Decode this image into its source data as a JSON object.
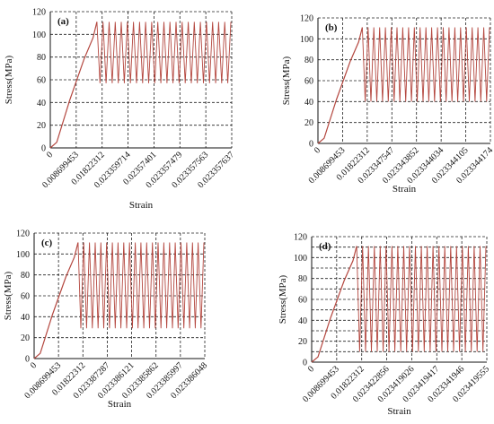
{
  "chart_data": [
    {
      "type": "line",
      "panel_label": "(a)",
      "xlabel": "Strain",
      "ylabel": "Stress(MPa)",
      "ylim": [
        0,
        120
      ],
      "yticks": [
        "0",
        "20",
        "40",
        "60",
        "80",
        "100",
        "120"
      ],
      "xticks": [
        "0",
        "0.008699453",
        "0.01822312",
        "0.023359714",
        "0.02357401",
        "0.023357479",
        "0.023357563",
        "0.023357637"
      ],
      "grid": true,
      "monotonic_loading": {
        "x_tick_position": [
          0,
          0.25,
          0.75,
          1.3,
          1.65,
          1.8
        ],
        "stress": [
          0,
          5,
          42,
          78,
          97,
          111
        ]
      },
      "cyclic_loading": {
        "max_stress": 111,
        "min_stress": 57,
        "cycles": 22
      }
    },
    {
      "type": "line",
      "panel_label": "(b)",
      "xlabel": "Strain",
      "ylabel": "Stress(MPa)",
      "ylim": [
        0,
        120
      ],
      "yticks": [
        "0",
        "20",
        "40",
        "60",
        "80",
        "100",
        "120"
      ],
      "xticks": [
        "0",
        "0.008699453",
        "0.01822312",
        "0.023347547",
        "0.023343852",
        "0.023344034",
        "0.023344105",
        "0.023344174"
      ],
      "grid": true,
      "monotonic_loading": {
        "x_tick_position": [
          0,
          0.25,
          0.75,
          1.3,
          1.65,
          1.8
        ],
        "stress": [
          0,
          5,
          42,
          78,
          97,
          111
        ]
      },
      "cyclic_loading": {
        "max_stress": 111,
        "min_stress": 40,
        "cycles": 22
      }
    },
    {
      "type": "line",
      "panel_label": "(c)",
      "xlabel": "Strain",
      "ylabel": "Stress(MPa)",
      "ylim": [
        0,
        120
      ],
      "yticks": [
        "0",
        "20",
        "40",
        "60",
        "80",
        "100",
        "120"
      ],
      "xticks": [
        "0",
        "0.008699453",
        "0.01822312",
        "0.023387287",
        "0.023386121",
        "0.023385862",
        "0.023385997",
        "0.023386048"
      ],
      "grid": true,
      "monotonic_loading": {
        "x_tick_position": [
          0,
          0.25,
          0.75,
          1.3,
          1.65,
          1.8
        ],
        "stress": [
          0,
          5,
          42,
          78,
          97,
          111
        ]
      },
      "cyclic_loading": {
        "max_stress": 111,
        "min_stress": 29,
        "cycles": 22
      }
    },
    {
      "type": "line",
      "panel_label": "(d)",
      "xlabel": "Strain",
      "ylabel": "Stress(MPa)",
      "ylim": [
        0,
        120
      ],
      "yticks": [
        "0",
        "10",
        "20",
        "30",
        "40",
        "50",
        "60",
        "70",
        "80",
        "90",
        "100",
        "110",
        "120"
      ],
      "ytick_labels_shown": [
        "0",
        "20",
        "40",
        "60",
        "80",
        "100",
        "120"
      ],
      "xticks": [
        "0",
        "0.008699453",
        "0.01822312",
        "0.023422856",
        "0.023419026",
        "0.023419417",
        "0.023341946",
        "0.023419555"
      ],
      "grid": true,
      "monotonic_loading": {
        "x_tick_position": [
          0,
          0.25,
          0.75,
          1.3,
          1.65,
          1.8
        ],
        "stress": [
          0,
          5,
          42,
          78,
          97,
          111
        ]
      },
      "cyclic_loading": {
        "max_stress": 111,
        "min_stress": 10,
        "cycles": 22
      }
    }
  ],
  "colors": {
    "series": "#b4473f",
    "grid": "#222222",
    "axis": "#111111"
  }
}
